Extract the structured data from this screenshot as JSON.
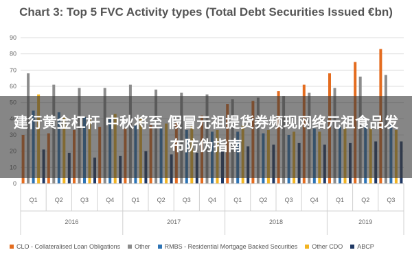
{
  "chart_data": {
    "type": "bar",
    "title": "Chart 3: Top 5 FVC Activity types (Total Debt Securities Issued €bn)",
    "categories": [
      "Q1",
      "Q2",
      "Q3",
      "Q4",
      "Q1",
      "Q2",
      "Q3",
      "Q4",
      "Q1",
      "Q2",
      "Q3",
      "Q4",
      "Q1",
      "Q2",
      "Q3"
    ],
    "groups": [
      {
        "label": "2016",
        "count": 4
      },
      {
        "label": "2017",
        "count": 4
      },
      {
        "label": "2018",
        "count": 4
      },
      {
        "label": "2019",
        "count": 3
      }
    ],
    "ylim": [
      0,
      90
    ],
    "yticks": [
      "0",
      "10",
      "20",
      "30",
      "40",
      "50",
      "60",
      "70",
      "80",
      "90"
    ],
    "legend_position": "bottom",
    "series": [
      {
        "name": "CLO - Collateralised Loan Obligations",
        "color": "#E46C1F",
        "values": [
          30,
          31,
          33,
          35,
          34,
          36,
          38,
          42,
          49,
          51,
          57,
          61,
          68,
          75,
          83
        ]
      },
      {
        "name": "Other",
        "color": "#8C8C8C",
        "values": [
          68,
          61,
          59,
          59,
          61,
          58,
          56,
          55,
          52,
          53,
          54,
          56,
          59,
          66,
          67
        ]
      },
      {
        "name": "RMBS - Residential Mortgage Backed Securities",
        "color": "#2E74B5",
        "values": [
          45,
          44,
          41,
          40,
          36,
          35,
          33,
          32,
          32,
          31,
          30,
          34,
          35,
          36,
          36
        ]
      },
      {
        "name": "Other CDO",
        "color": "#F2B422",
        "values": [
          55,
          41,
          40,
          43,
          40,
          37,
          36,
          33,
          36,
          33,
          32,
          32,
          35,
          34,
          33
        ]
      },
      {
        "name": "ABCP",
        "color": "#203864",
        "values": [
          21,
          19,
          16,
          17,
          20,
          18,
          19,
          20,
          23,
          24,
          25,
          24,
          25,
          26,
          26
        ]
      }
    ]
  },
  "overlay": {
    "text": "建行黄金杠杆 中秋将至 假冒元祖提货券频现网络元祖食品发布防伪指南"
  }
}
